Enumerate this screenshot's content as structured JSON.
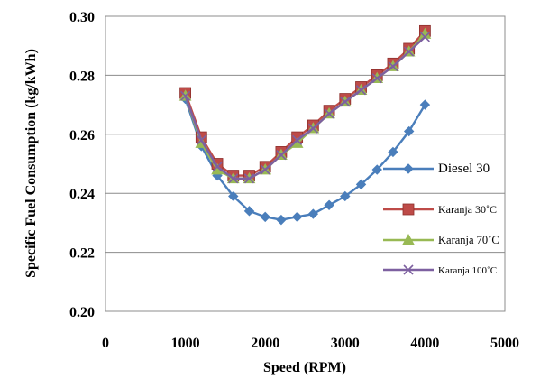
{
  "chart_data": {
    "type": "line",
    "xlabel": "Speed (RPM)",
    "ylabel": "Specific Fuel Consumption (kg/kWh)",
    "xlim": [
      0,
      5000
    ],
    "ylim": [
      0.2,
      0.3
    ],
    "x_ticks": [
      0,
      1000,
      2000,
      3000,
      4000,
      5000
    ],
    "y_ticks": [
      0.2,
      0.22,
      0.24,
      0.26,
      0.28,
      0.3
    ],
    "x_tick_labels": [
      "0",
      "1000",
      "2000",
      "3000",
      "4000",
      "5000"
    ],
    "y_tick_labels": [
      "0.20",
      "0.22",
      "0.24",
      "0.26",
      "0.28",
      "0.30"
    ],
    "grid": "horizontal",
    "legend_position": "right",
    "x": [
      1000,
      1200,
      1400,
      1600,
      1800,
      2000,
      2200,
      2400,
      2600,
      2800,
      3000,
      3200,
      3400,
      3600,
      3800,
      4000
    ],
    "series": [
      {
        "name": "Diesel 30",
        "color": "#4a7ebb",
        "marker": "diamond",
        "values": [
          0.272,
          0.256,
          0.246,
          0.239,
          0.234,
          0.232,
          0.231,
          0.232,
          0.233,
          0.236,
          0.239,
          0.243,
          0.248,
          0.254,
          0.261,
          0.27
        ]
      },
      {
        "name": "Karanja 30˚C",
        "color": "#be4b48",
        "marker": "square",
        "values": [
          0.274,
          0.259,
          0.25,
          0.246,
          0.246,
          0.249,
          0.254,
          0.259,
          0.263,
          0.268,
          0.272,
          0.276,
          0.28,
          0.284,
          0.289,
          0.295
        ]
      },
      {
        "name": "Karanja 70˚C",
        "color": "#98b954",
        "marker": "triangle",
        "values": [
          0.273,
          0.257,
          0.248,
          0.245,
          0.245,
          0.248,
          0.253,
          0.257,
          0.262,
          0.267,
          0.271,
          0.275,
          0.279,
          0.283,
          0.288,
          0.294
        ]
      },
      {
        "name": "Karanja 100˚C",
        "color": "#7d60a0",
        "marker": "x",
        "values": [
          0.273,
          0.258,
          0.249,
          0.245,
          0.245,
          0.248,
          0.253,
          0.258,
          0.262,
          0.267,
          0.271,
          0.275,
          0.279,
          0.283,
          0.288,
          0.293
        ]
      }
    ]
  }
}
